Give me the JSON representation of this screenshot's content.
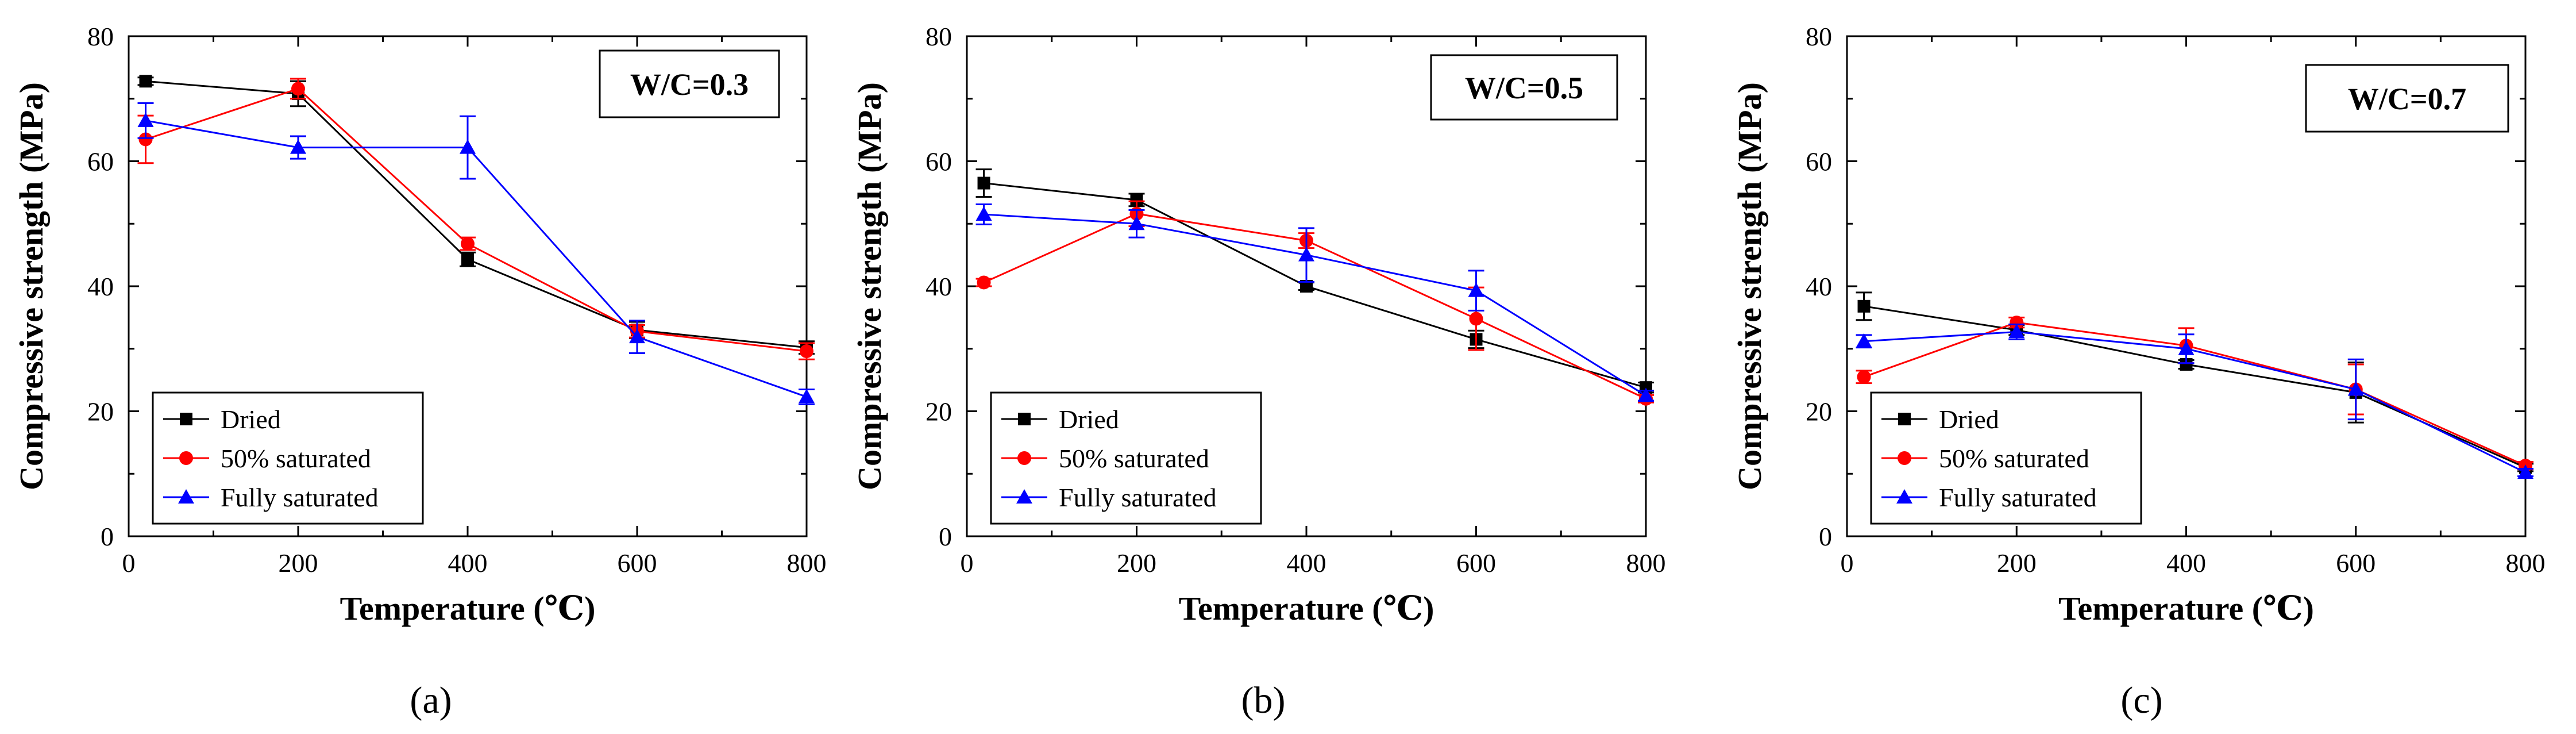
{
  "chart_data": [
    {
      "type": "line",
      "panel_label": "(a)",
      "annotation": "W/C=0.3",
      "xlabel": "Temperature (℃)",
      "ylabel": "Compressive strength (MPa)",
      "xlim": [
        0,
        800
      ],
      "ylim": [
        0,
        80
      ],
      "xticks": [
        0,
        200,
        400,
        600,
        800
      ],
      "yticks": [
        0,
        20,
        40,
        60,
        80
      ],
      "grid": false,
      "legend_position": "bottom-left",
      "series": [
        {
          "name": "Dried",
          "color": "#000000",
          "marker": "square",
          "x": [
            20,
            200,
            400,
            600,
            800
          ],
          "y": [
            72.8,
            70.8,
            44.3,
            33.0,
            30.2
          ],
          "err": [
            0.6,
            2.0,
            1.1,
            1.3,
            1.0
          ]
        },
        {
          "name": "50% saturated",
          "color": "#ff0000",
          "marker": "circle",
          "x": [
            20,
            200,
            400,
            600,
            800
          ],
          "y": [
            63.5,
            71.6,
            46.8,
            32.8,
            29.6
          ],
          "err": [
            3.8,
            1.6,
            1.0,
            1.0,
            1.3
          ]
        },
        {
          "name": "Fully saturated",
          "color": "#0000ff",
          "marker": "triangle",
          "x": [
            20,
            200,
            400,
            600,
            800
          ],
          "y": [
            66.5,
            62.2,
            62.2,
            31.9,
            22.3
          ],
          "err": [
            2.8,
            1.8,
            5.0,
            2.6,
            1.2
          ]
        }
      ]
    },
    {
      "type": "line",
      "panel_label": "(b)",
      "annotation": "W/C=0.5",
      "xlabel": "Temperature (℃)",
      "ylabel": "Compressive strength (MPa)",
      "xlim": [
        0,
        800
      ],
      "ylim": [
        0,
        80
      ],
      "xticks": [
        0,
        200,
        400,
        600,
        800
      ],
      "yticks": [
        0,
        20,
        40,
        60,
        80
      ],
      "grid": false,
      "legend_position": "bottom-left",
      "series": [
        {
          "name": "Dried",
          "color": "#000000",
          "marker": "square",
          "x": [
            20,
            200,
            400,
            600,
            800
          ],
          "y": [
            56.5,
            53.8,
            40.0,
            31.5,
            23.8
          ],
          "err": [
            2.2,
            1.0,
            0.6,
            1.4,
            0.8
          ]
        },
        {
          "name": "50% saturated",
          "color": "#ff0000",
          "marker": "circle",
          "x": [
            20,
            200,
            400,
            600,
            800
          ],
          "y": [
            40.6,
            51.6,
            47.3,
            34.8,
            22.0
          ],
          "err": [
            0.6,
            2.0,
            1.2,
            5.0,
            0.6
          ]
        },
        {
          "name": "Fully saturated",
          "color": "#0000ff",
          "marker": "triangle",
          "x": [
            20,
            200,
            400,
            600,
            800
          ],
          "y": [
            51.5,
            50.0,
            45.0,
            39.3,
            22.5
          ],
          "err": [
            1.6,
            2.2,
            4.3,
            3.2,
            0.8
          ]
        }
      ]
    },
    {
      "type": "line",
      "panel_label": "(c)",
      "annotation": "W/C=0.7",
      "xlabel": "Temperature (℃)",
      "ylabel": "Compressive strength (MPa)",
      "xlim": [
        0,
        800
      ],
      "ylim": [
        0,
        80
      ],
      "xticks": [
        0,
        200,
        400,
        600,
        800
      ],
      "yticks": [
        0,
        20,
        40,
        60,
        80
      ],
      "grid": false,
      "legend_position": "bottom-left",
      "series": [
        {
          "name": "Dried",
          "color": "#000000",
          "marker": "square",
          "x": [
            20,
            200,
            400,
            600,
            800
          ],
          "y": [
            36.8,
            33.0,
            27.5,
            23.0,
            11.0
          ],
          "err": [
            2.2,
            0.8,
            0.7,
            4.8,
            0.6
          ]
        },
        {
          "name": "50% saturated",
          "color": "#ff0000",
          "marker": "circle",
          "x": [
            20,
            200,
            400,
            600,
            800
          ],
          "y": [
            25.5,
            34.2,
            30.5,
            23.5,
            11.3
          ],
          "err": [
            1.0,
            0.8,
            2.8,
            4.0,
            0.6
          ]
        },
        {
          "name": "Fully saturated",
          "color": "#0000ff",
          "marker": "triangle",
          "x": [
            20,
            200,
            400,
            600,
            800
          ],
          "y": [
            31.2,
            32.7,
            30.0,
            23.5,
            10.2
          ],
          "err": [
            1.0,
            1.2,
            2.3,
            4.8,
            0.6
          ]
        }
      ]
    }
  ]
}
